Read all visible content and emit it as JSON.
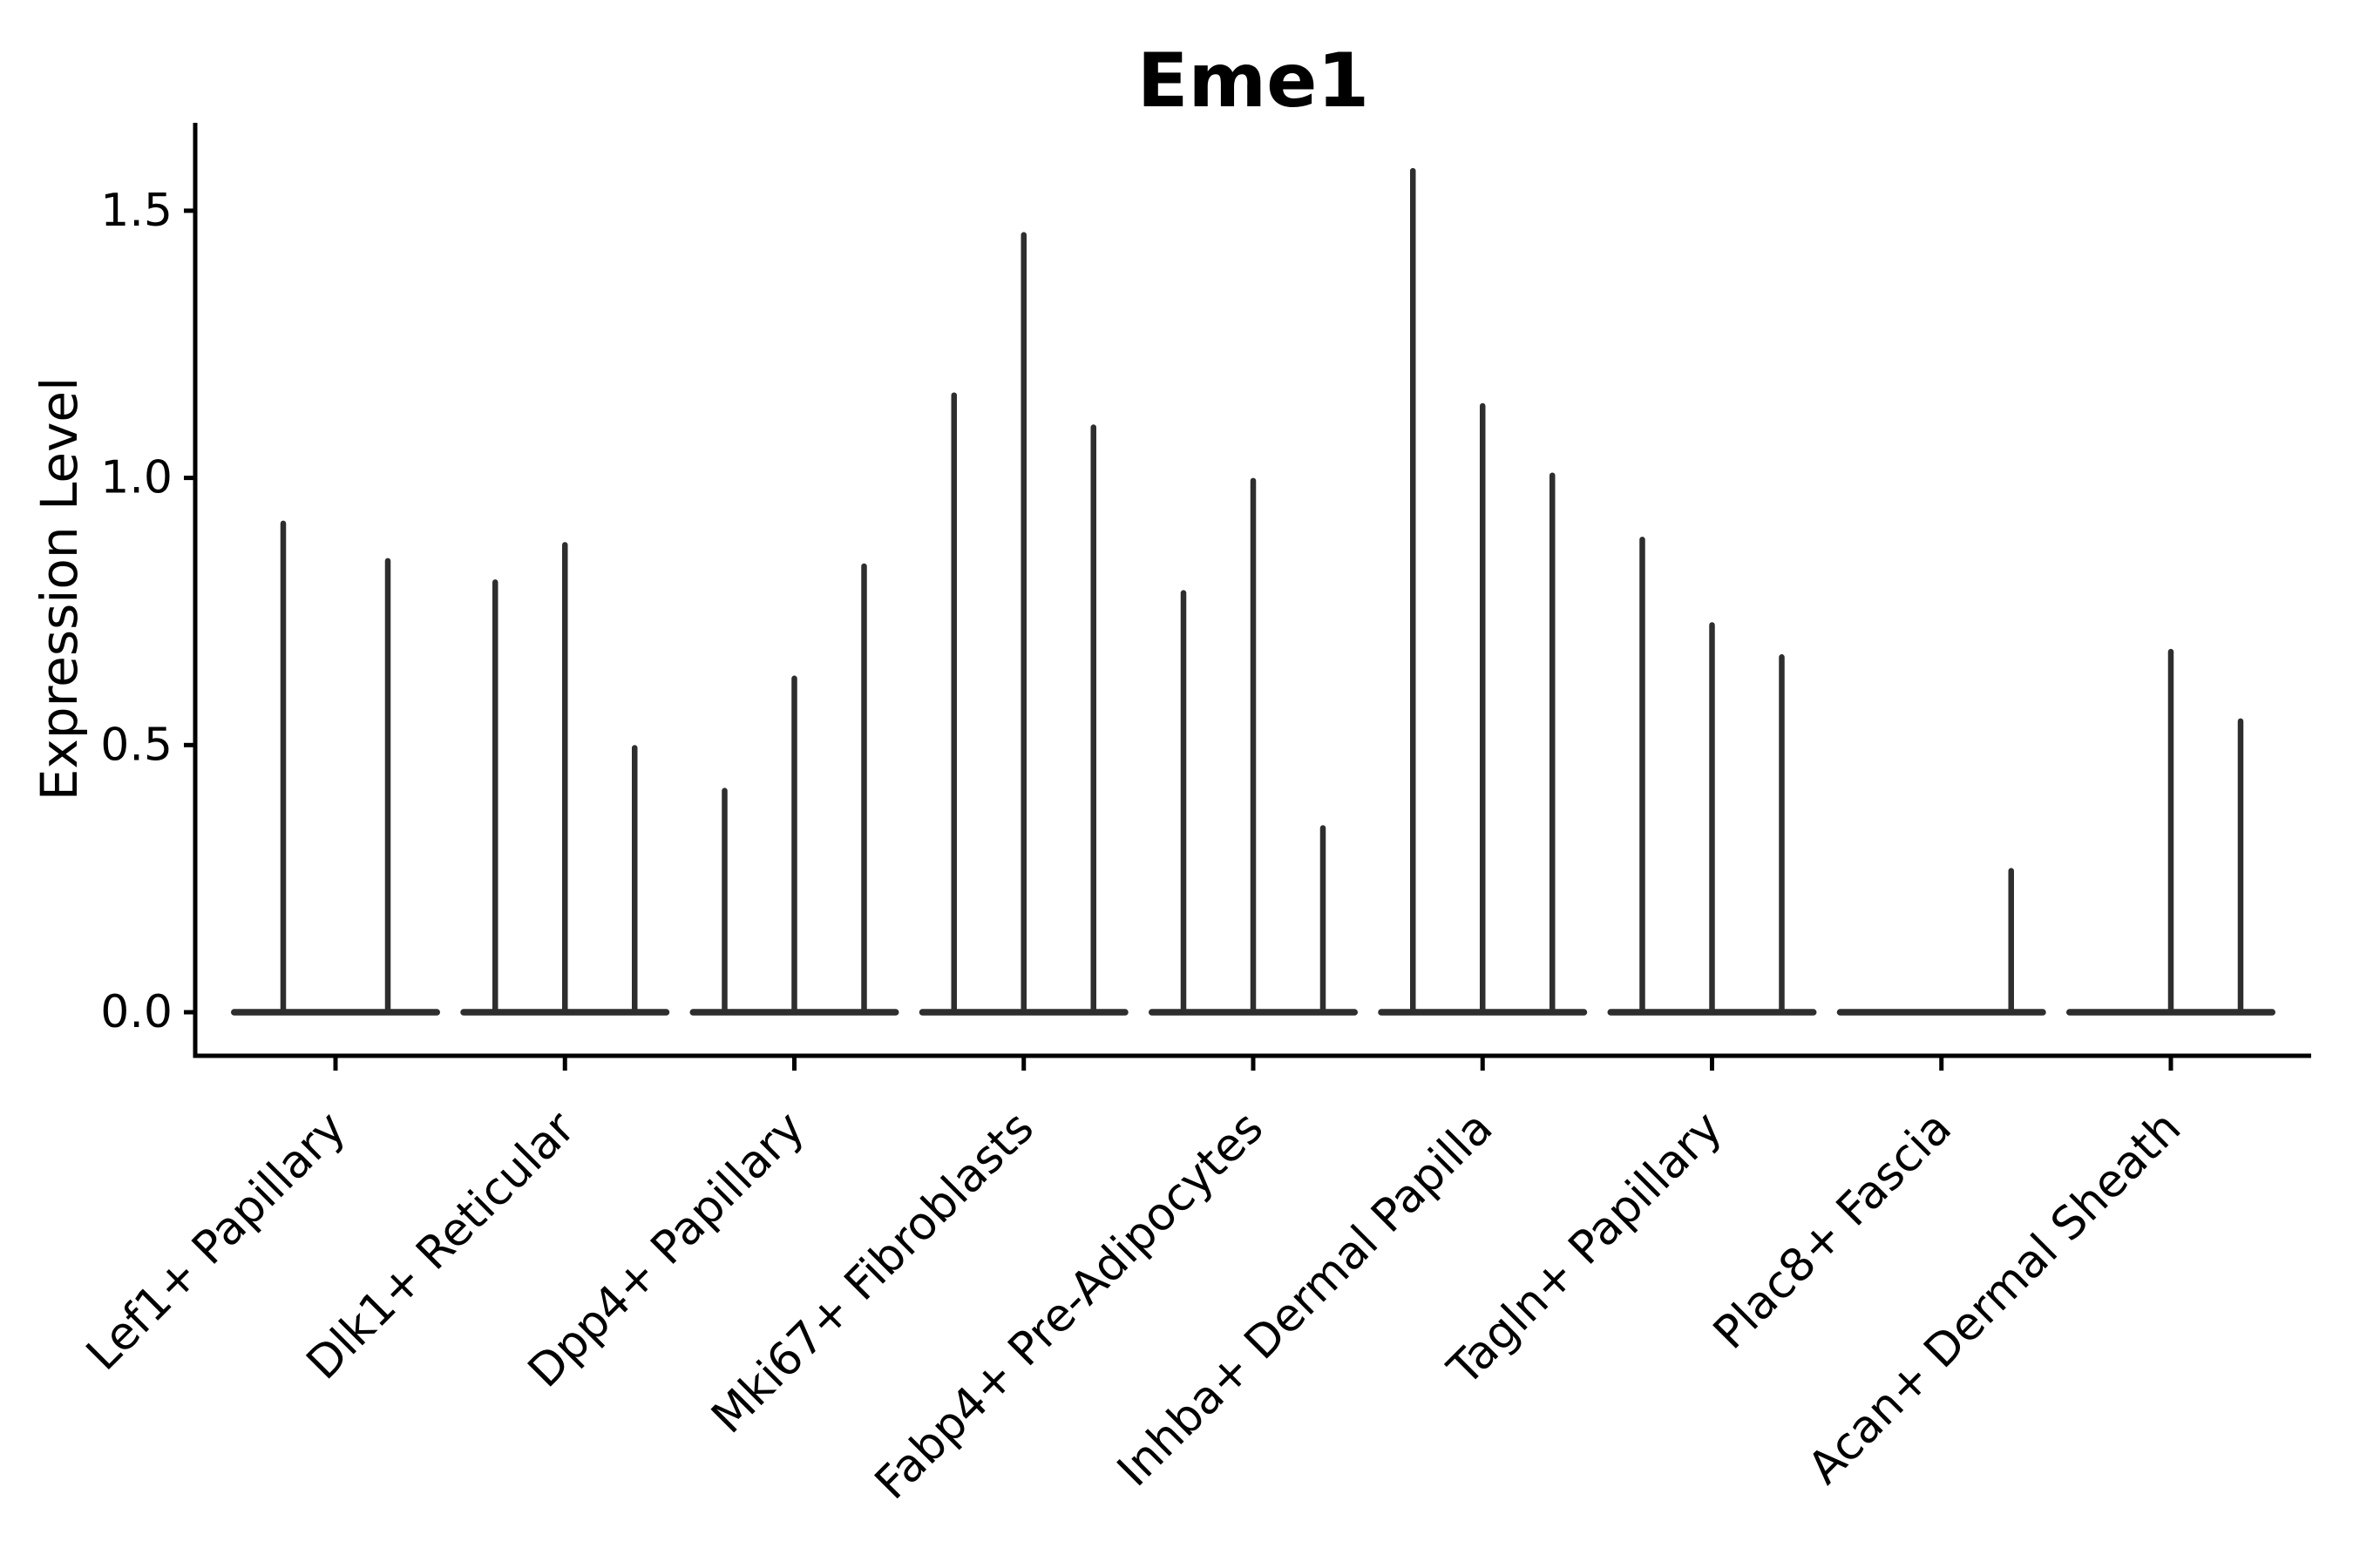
{
  "page": {
    "background": "#ffffff"
  },
  "chart_data": {
    "type": "violin",
    "title": "Eme1",
    "ylabel": "Expression Level",
    "xlabel": "",
    "ytick_labels": [
      "0.0",
      "0.5",
      "1.0",
      "1.5"
    ],
    "ytick_values": [
      0.0,
      0.5,
      1.0,
      1.5
    ],
    "ylim": [
      0.0,
      1.66
    ],
    "grid": false,
    "legend": false,
    "ink_color": "#2e2e2e",
    "axis_color": "#000000",
    "categories": [
      "Lef1+ Papillary",
      "Dlk1+ Reticular",
      "Dpp4+ Papillary",
      "Mki67+ Fibroblasts",
      "Fabp4+ Pre-Adipocytes",
      "Inhba+ Dermal Papilla",
      "Tagln+ Papillary",
      "Plac8+ Fascia",
      "Acan+ Dermal Sheath"
    ],
    "groups": [
      {
        "category": "Lef1+ Papillary",
        "violin_max_values": [
          0.92,
          0.85
        ]
      },
      {
        "category": "Dlk1+ Reticular",
        "violin_max_values": [
          0.81,
          0.88,
          0.5
        ]
      },
      {
        "category": "Dpp4+ Papillary",
        "violin_max_values": [
          0.42,
          0.63,
          0.84
        ]
      },
      {
        "category": "Mki67+ Fibroblasts",
        "violin_max_values": [
          1.16,
          1.46,
          1.1
        ]
      },
      {
        "category": "Fabp4+ Pre-Adipocytes",
        "violin_max_values": [
          0.79,
          1.0,
          0.35
        ]
      },
      {
        "category": "Inhba+ Dermal Papilla",
        "violin_max_values": [
          1.58,
          1.14,
          1.01
        ]
      },
      {
        "category": "Tagln+ Papillary",
        "violin_max_values": [
          0.89,
          0.73,
          0.67
        ]
      },
      {
        "category": "Plac8+ Fascia",
        "violin_max_values": [
          0.0,
          0.0,
          0.27
        ]
      },
      {
        "category": "Acan+ Dermal Sheath",
        "violin_max_values": [
          0.0,
          0.68,
          0.55
        ]
      }
    ]
  }
}
